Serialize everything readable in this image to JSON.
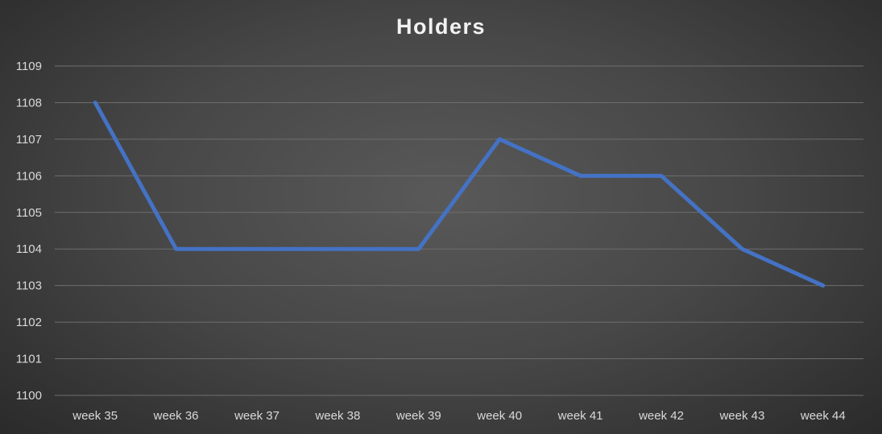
{
  "chart_data": {
    "type": "line",
    "title": "Holders",
    "xlabel": "",
    "ylabel": "",
    "categories": [
      "week 35",
      "week 36",
      "week 37",
      "week 38",
      "week 39",
      "week 40",
      "week 41",
      "week 42",
      "week 43",
      "week 44"
    ],
    "series": [
      {
        "values": [
          1108,
          1104,
          1104,
          1104,
          1104,
          1107,
          1106,
          1106,
          1104,
          1103
        ],
        "color": "#4472c4"
      }
    ],
    "ylim": [
      1100,
      1109
    ],
    "yticks": [
      1100,
      1101,
      1102,
      1103,
      1104,
      1105,
      1106,
      1107,
      1108,
      1109
    ],
    "grid": true,
    "legend": "none",
    "colors": {
      "background_center": "#595959",
      "background_edge": "#262626",
      "gridline": "#6e6e6e",
      "text": "#d9d9d9",
      "title": "#f2f2f2"
    }
  }
}
